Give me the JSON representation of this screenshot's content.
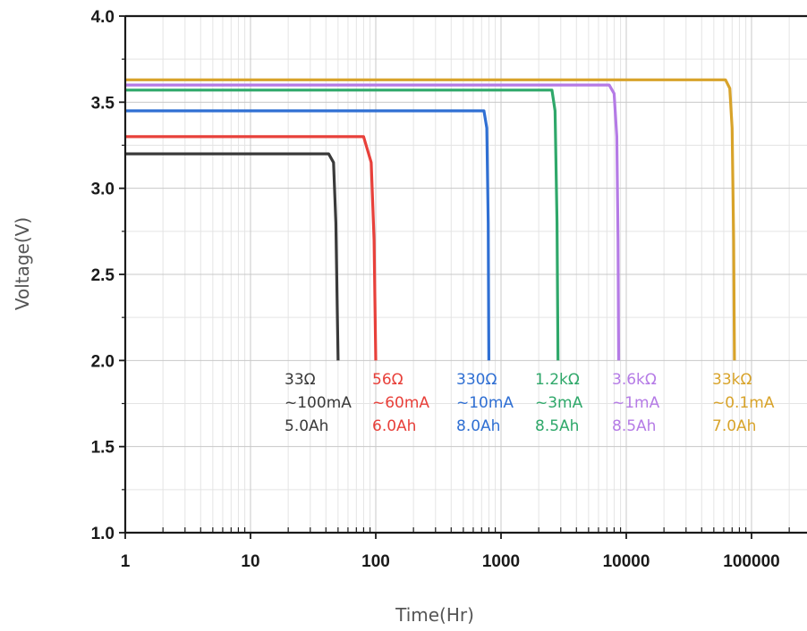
{
  "chart_data": {
    "type": "line",
    "title": "",
    "xlabel": "Time(Hr)",
    "ylabel": "Voltage(V)",
    "xscale": "log",
    "xlim": [
      1,
      300000
    ],
    "ylim": [
      1.0,
      4.0
    ],
    "x_ticks": [
      "1",
      "10",
      "100",
      "1000",
      "10000",
      "100000"
    ],
    "x_tick_values": [
      1,
      10,
      100,
      1000,
      10000,
      100000
    ],
    "y_ticks": [
      "1.0",
      "1.5",
      "2.0",
      "2.5",
      "3.0",
      "3.5",
      "4.0"
    ],
    "y_tick_values": [
      1.0,
      1.5,
      2.0,
      2.5,
      3.0,
      3.5,
      4.0
    ],
    "grid": true,
    "series": [
      {
        "color": "#3a3a3a",
        "annotation": [
          "33Ω",
          "~100mA",
          "5.0Ah"
        ],
        "points": [
          [
            1,
            3.2
          ],
          [
            42,
            3.2
          ],
          [
            46,
            3.15
          ],
          [
            48,
            2.8
          ],
          [
            50,
            2.0
          ]
        ]
      },
      {
        "color": "#e8403a",
        "annotation": [
          "56Ω",
          "~60mA",
          "6.0Ah"
        ],
        "points": [
          [
            1,
            3.3
          ],
          [
            80,
            3.3
          ],
          [
            92,
            3.15
          ],
          [
            97,
            2.7
          ],
          [
            100,
            2.0
          ]
        ]
      },
      {
        "color": "#2f6fd3",
        "annotation": [
          "330Ω",
          "~10mA",
          "8.0Ah"
        ],
        "points": [
          [
            1,
            3.45
          ],
          [
            730,
            3.45
          ],
          [
            770,
            3.35
          ],
          [
            790,
            2.8
          ],
          [
            800,
            2.0
          ]
        ]
      },
      {
        "color": "#2fa86a",
        "annotation": [
          "1.2kΩ",
          "~3mA",
          "8.5Ah"
        ],
        "points": [
          [
            1,
            3.57
          ],
          [
            2550,
            3.57
          ],
          [
            2700,
            3.45
          ],
          [
            2800,
            2.8
          ],
          [
            2850,
            2.0
          ]
        ]
      },
      {
        "color": "#b57be6",
        "annotation": [
          "3.6kΩ",
          "~1mA",
          "8.5Ah"
        ],
        "points": [
          [
            1,
            3.6
          ],
          [
            7300,
            3.6
          ],
          [
            8000,
            3.55
          ],
          [
            8400,
            3.3
          ],
          [
            8600,
            2.7
          ],
          [
            8700,
            2.0
          ]
        ]
      },
      {
        "color": "#d8a32a",
        "annotation": [
          "33kΩ",
          "~0.1mA",
          "7.0Ah"
        ],
        "points": [
          [
            1,
            3.63
          ],
          [
            62000,
            3.63
          ],
          [
            67000,
            3.58
          ],
          [
            70000,
            3.35
          ],
          [
            72000,
            2.7
          ],
          [
            73000,
            2.0
          ]
        ]
      }
    ]
  }
}
